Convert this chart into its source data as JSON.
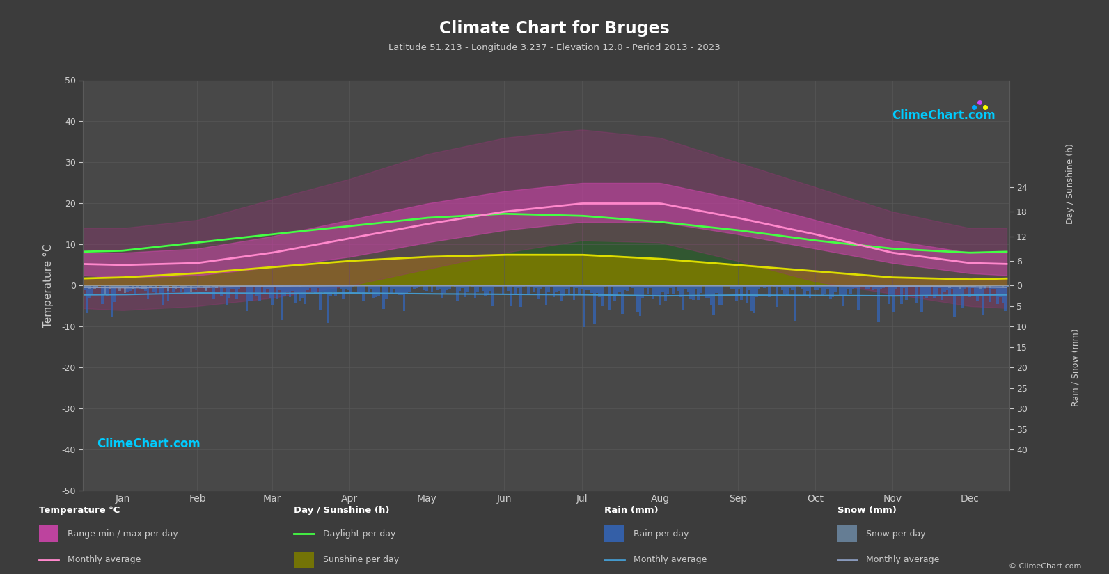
{
  "title": "Climate Chart for Bruges",
  "subtitle": "Latitude 51.213 - Longitude 3.237 - Elevation 12.0 - Period 2013 - 2023",
  "bg_color": "#3c3c3c",
  "plot_bg_color": "#484848",
  "text_color": "#cccccc",
  "grid_color": "#5a5a5a",
  "months": [
    "Jan",
    "Feb",
    "Mar",
    "Apr",
    "May",
    "Jun",
    "Jul",
    "Aug",
    "Sep",
    "Oct",
    "Nov",
    "Dec"
  ],
  "days_in_month": [
    31,
    28,
    31,
    30,
    31,
    30,
    31,
    31,
    30,
    31,
    30,
    31
  ],
  "ylim_temp": [
    -50,
    50
  ],
  "temp_max_daily": [
    8.0,
    9.0,
    12.0,
    16.0,
    20.0,
    23.0,
    25.0,
    25.0,
    21.0,
    16.0,
    11.0,
    8.0
  ],
  "temp_min_daily": [
    2.0,
    2.5,
    4.5,
    7.0,
    10.5,
    13.5,
    15.5,
    15.5,
    12.5,
    9.0,
    5.5,
    3.0
  ],
  "temp_max_extreme": [
    14.0,
    16.0,
    21.0,
    26.0,
    32.0,
    36.0,
    38.0,
    36.0,
    30.0,
    24.0,
    18.0,
    14.0
  ],
  "temp_min_extreme": [
    -6.0,
    -5.0,
    -3.0,
    0.0,
    4.0,
    8.0,
    11.0,
    10.5,
    6.0,
    1.0,
    -2.0,
    -5.0
  ],
  "temp_avg_monthly": [
    5.0,
    5.5,
    8.0,
    11.5,
    15.0,
    18.0,
    20.0,
    20.0,
    16.5,
    12.5,
    8.0,
    5.5
  ],
  "daylight_hours": [
    8.5,
    10.5,
    12.5,
    14.5,
    16.5,
    17.5,
    17.0,
    15.5,
    13.5,
    11.0,
    9.0,
    8.0
  ],
  "sunshine_hours_daily": [
    2.0,
    3.0,
    4.5,
    6.0,
    7.0,
    7.5,
    7.5,
    6.5,
    5.0,
    3.5,
    2.0,
    1.5
  ],
  "rain_mm_per_day": [
    2.2,
    1.8,
    1.9,
    1.8,
    2.0,
    2.1,
    2.2,
    2.5,
    2.3,
    2.4,
    2.5,
    2.3
  ],
  "rain_monthly_avg_mm": [
    2.2,
    1.8,
    1.9,
    1.8,
    2.0,
    2.1,
    2.2,
    2.5,
    2.3,
    2.4,
    2.5,
    2.3
  ],
  "snow_mm_per_day": [
    0.5,
    0.4,
    0.1,
    0.0,
    0.0,
    0.0,
    0.0,
    0.0,
    0.0,
    0.0,
    0.1,
    0.3
  ],
  "snow_monthly_avg_mm": [
    0.5,
    0.4,
    0.1,
    0.0,
    0.0,
    0.0,
    0.0,
    0.0,
    0.0,
    0.0,
    0.1,
    0.3
  ],
  "color_daylight_fill": "#2d5a2d",
  "color_sunshine_fill": "#7a7a00",
  "color_temp_range_fill": "#cc44aa",
  "color_temp_extreme_fill": "#993377",
  "color_temp_avg_line": "#ff88cc",
  "color_daylight_line": "#44ff44",
  "color_sunshine_line": "#dddd00",
  "color_rain_bar": "#3366bb",
  "color_snow_bar": "#7799bb",
  "color_rain_avg_line": "#4499cc",
  "color_snow_avg_line": "#8899bb",
  "color_watermark": "#00ccff",
  "watermark": "ClimeChart.com",
  "copyright": "© ClimeChart.com",
  "right_axis_top_label": "Day / Sunshine (h)",
  "right_axis_bot_label": "Rain / Snow (mm)"
}
